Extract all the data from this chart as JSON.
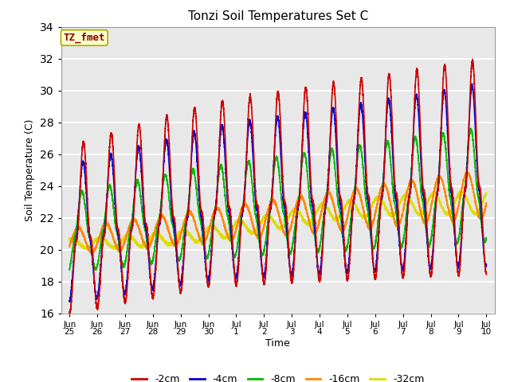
{
  "title": "Tonzi Soil Temperatures Set C",
  "xlabel": "Time",
  "ylabel": "Soil Temperature (C)",
  "ylim": [
    16,
    34
  ],
  "plot_bg": "#e8e8e8",
  "annotation_text": "TZ_fmet",
  "annotation_color": "#8b0000",
  "annotation_bg": "#ffffcc",
  "annotation_border": "#aaaa00",
  "series": {
    "-2cm": {
      "color": "#cc0000",
      "lw": 1.2
    },
    "-4cm": {
      "color": "#0000cc",
      "lw": 1.2
    },
    "-8cm": {
      "color": "#00bb00",
      "lw": 1.2
    },
    "-16cm": {
      "color": "#ff8800",
      "lw": 1.2
    },
    "-32cm": {
      "color": "#dddd00",
      "lw": 1.2
    }
  },
  "tick_labels": [
    "Jun\n25",
    "Jun\n26",
    "Jun\n27",
    "Jun\n28",
    "Jun\n29",
    "Jun\n30",
    "Jul\n1",
    "Jul\n2",
    "Jul\n3",
    "Jul\n4",
    "Jul\n5",
    "Jul\n6",
    "Jul\n7",
    "Jul\n8",
    "Jul\n9",
    "Jul\n10"
  ],
  "tick_positions": [
    0,
    1,
    2,
    3,
    4,
    5,
    6,
    7,
    8,
    9,
    10,
    11,
    12,
    13,
    14,
    15
  ]
}
